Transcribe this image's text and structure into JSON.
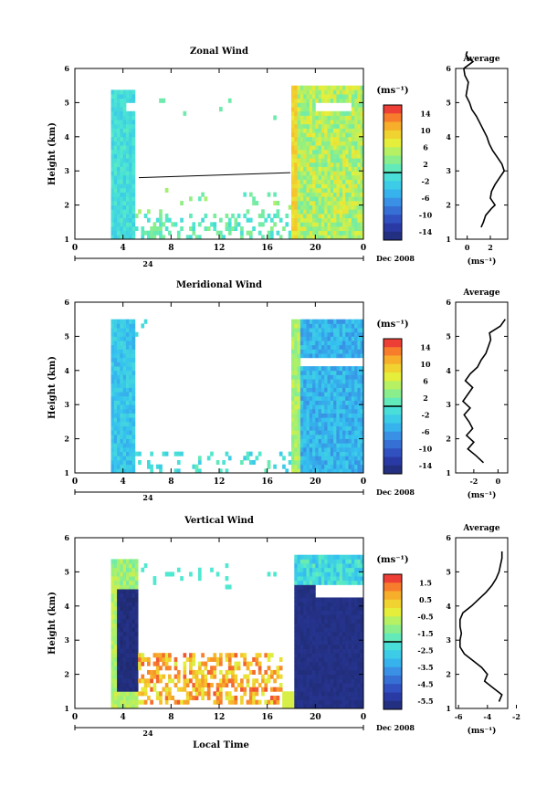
{
  "figure": {
    "date_label": "Dec 2008",
    "xaxis_title": "Local Time",
    "day_label": "24",
    "colorbar_unit": "(ms⁻¹)",
    "avg_unit": "(ms⁻¹)"
  },
  "chart_data": [
    {
      "type": "heatmap",
      "title": "Zonal Wind",
      "ylabel": "Height (km)",
      "xlabel": "",
      "xlim": [
        0,
        24
      ],
      "ylim": [
        1,
        6
      ],
      "xticks": [
        "0",
        "4",
        "8",
        "12",
        "16",
        "20",
        "0"
      ],
      "yticks": [
        "1",
        "2",
        "3",
        "4",
        "5",
        "6"
      ],
      "colorbar": {
        "range": [
          -15,
          15
        ],
        "ticks": [
          "14",
          "10",
          "6",
          "2",
          "-2",
          "-6",
          "-10",
          "-14"
        ]
      },
      "average_profile": {
        "title": "Average",
        "xlim": [
          -1,
          3.5
        ],
        "xticks": [
          "0",
          "2"
        ],
        "yticks": [
          "1",
          "2",
          "3",
          "4",
          "5",
          "6"
        ],
        "height": [
          1.35,
          1.5,
          1.7,
          1.9,
          2.0,
          2.2,
          2.4,
          2.6,
          2.8,
          3.0,
          3.2,
          3.4,
          3.6,
          3.8,
          4.0,
          4.2,
          4.4,
          4.6,
          4.8,
          5.0,
          5.2,
          5.4,
          5.6,
          5.8,
          6.0,
          6.1,
          6.2,
          6.3,
          6.4,
          6.5
        ],
        "value": [
          1.2,
          1.4,
          1.6,
          2.1,
          2.4,
          2.0,
          2.1,
          2.4,
          2.8,
          3.2,
          3.0,
          2.6,
          2.2,
          1.9,
          1.7,
          1.4,
          1.1,
          0.8,
          0.4,
          0.2,
          -0.1,
          0.0,
          0.1,
          -0.2,
          -0.3,
          0.1,
          0.5,
          0.1,
          -0.1,
          0.0
        ]
      }
    },
    {
      "type": "heatmap",
      "title": "Meridional Wind",
      "ylabel": "Height (km)",
      "xlabel": "",
      "xlim": [
        0,
        24
      ],
      "ylim": [
        1,
        6
      ],
      "xticks": [
        "0",
        "4",
        "8",
        "12",
        "16",
        "20",
        "0"
      ],
      "yticks": [
        "1",
        "2",
        "3",
        "4",
        "5",
        "6"
      ],
      "colorbar": {
        "range": [
          -15,
          15
        ],
        "ticks": [
          "14",
          "10",
          "6",
          "2",
          "-2",
          "-6",
          "-10",
          "-14"
        ]
      },
      "average_profile": {
        "title": "Average",
        "xlim": [
          -3.5,
          0.8
        ],
        "xticks": [
          "-2",
          "0"
        ],
        "yticks": [
          "1",
          "2",
          "3",
          "4",
          "5",
          "6"
        ],
        "height": [
          1.3,
          1.5,
          1.7,
          1.9,
          2.1,
          2.3,
          2.5,
          2.7,
          2.9,
          3.1,
          3.3,
          3.5,
          3.7,
          3.9,
          4.1,
          4.3,
          4.5,
          4.7,
          4.9,
          5.1,
          5.3,
          5.5
        ],
        "value": [
          -1.2,
          -1.8,
          -2.5,
          -2.0,
          -2.6,
          -2.1,
          -2.4,
          -2.8,
          -2.3,
          -2.9,
          -2.5,
          -2.1,
          -2.7,
          -2.3,
          -1.7,
          -1.4,
          -1.0,
          -0.8,
          -0.6,
          -0.7,
          0.2,
          0.6
        ]
      }
    },
    {
      "type": "heatmap",
      "title": "Vertical Wind",
      "ylabel": "Height (km)",
      "xlabel": "Local Time",
      "xlim": [
        0,
        24
      ],
      "ylim": [
        1,
        6
      ],
      "xticks": [
        "0",
        "4",
        "8",
        "12",
        "16",
        "20",
        "0"
      ],
      "yticks": [
        "1",
        "2",
        "3",
        "4",
        "5",
        "6"
      ],
      "colorbar": {
        "range": [
          -6,
          2
        ],
        "ticks": [
          "1.5",
          "0.5",
          "-0.5",
          "-1.5",
          "-2.5",
          "-3.5",
          "-4.5",
          "-5.5"
        ]
      },
      "average_profile": {
        "title": "Average",
        "xlim": [
          -6.2,
          -2.6
        ],
        "xticks": [
          "-6",
          "-4",
          "-2"
        ],
        "yticks": [
          "1",
          "2",
          "3",
          "4",
          "5",
          "6"
        ],
        "height": [
          1.2,
          1.4,
          1.6,
          1.8,
          2.0,
          2.2,
          2.4,
          2.6,
          2.8,
          3.0,
          3.2,
          3.4,
          3.6,
          3.8,
          4.0,
          4.2,
          4.4,
          4.6,
          4.8,
          5.0,
          5.2,
          5.4,
          5.6
        ],
        "value": [
          -3.2,
          -3.0,
          -3.6,
          -4.2,
          -4.0,
          -4.4,
          -5.0,
          -5.6,
          -5.9,
          -5.9,
          -5.8,
          -5.9,
          -5.9,
          -5.7,
          -5.1,
          -4.6,
          -4.1,
          -3.7,
          -3.4,
          -3.2,
          -3.1,
          -3.0,
          -3.0
        ]
      }
    }
  ]
}
